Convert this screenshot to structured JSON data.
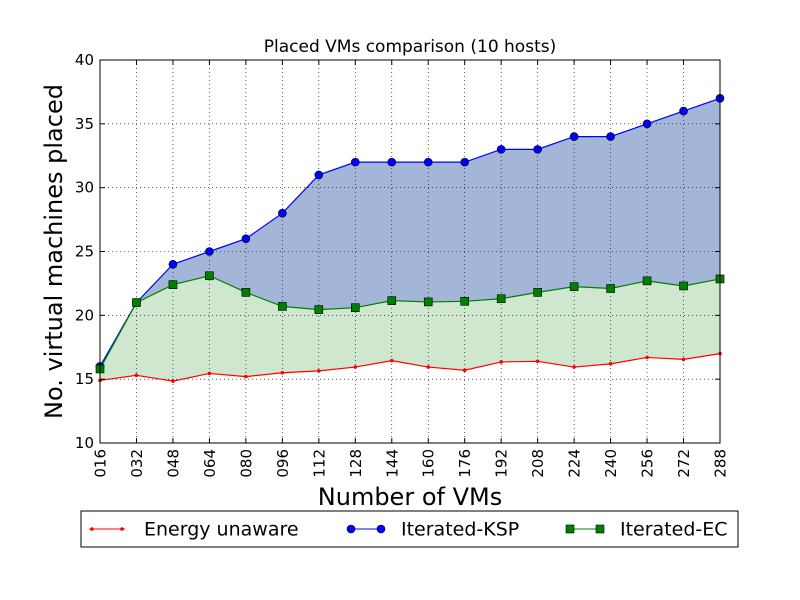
{
  "chart_data": {
    "type": "area",
    "title": "Placed VMs comparison (10 hosts)",
    "xlabel": "Number of VMs",
    "ylabel": "No. virtual machines placed",
    "categories": [
      "016",
      "032",
      "048",
      "064",
      "080",
      "096",
      "112",
      "128",
      "144",
      "160",
      "176",
      "192",
      "208",
      "224",
      "240",
      "256",
      "272",
      "288"
    ],
    "ylim": [
      10,
      40
    ],
    "yticks": [
      10,
      15,
      20,
      25,
      30,
      35,
      40
    ],
    "grid": true,
    "legend_position": "bottom",
    "series": [
      {
        "name": "Energy unaware",
        "color": "#ff0000",
        "marker": "dot",
        "values": [
          14.9,
          15.3,
          14.85,
          15.45,
          15.2,
          15.5,
          15.65,
          15.95,
          16.45,
          15.95,
          15.7,
          16.35,
          16.4,
          15.95,
          16.2,
          16.7,
          16.55,
          17.0
        ]
      },
      {
        "name": "Iterated-KSP",
        "color": "#0000ff",
        "marker": "circle",
        "values": [
          16,
          21,
          24,
          25,
          26,
          28,
          31,
          32,
          32,
          32,
          32,
          33,
          33,
          34,
          34,
          35,
          36,
          37
        ]
      },
      {
        "name": "Iterated-EC",
        "color": "#008000",
        "marker": "square",
        "values": [
          15.8,
          21.0,
          22.4,
          23.1,
          21.8,
          20.7,
          20.45,
          20.6,
          21.15,
          21.05,
          21.1,
          21.3,
          21.8,
          22.25,
          22.1,
          22.7,
          22.3,
          22.85
        ]
      }
    ],
    "fills": [
      {
        "between": [
          "Energy unaware",
          "Iterated-EC"
        ],
        "color": "#cfe6cf"
      },
      {
        "between": [
          "Iterated-EC",
          "Iterated-KSP"
        ],
        "color": "#a3b6d7"
      }
    ]
  }
}
